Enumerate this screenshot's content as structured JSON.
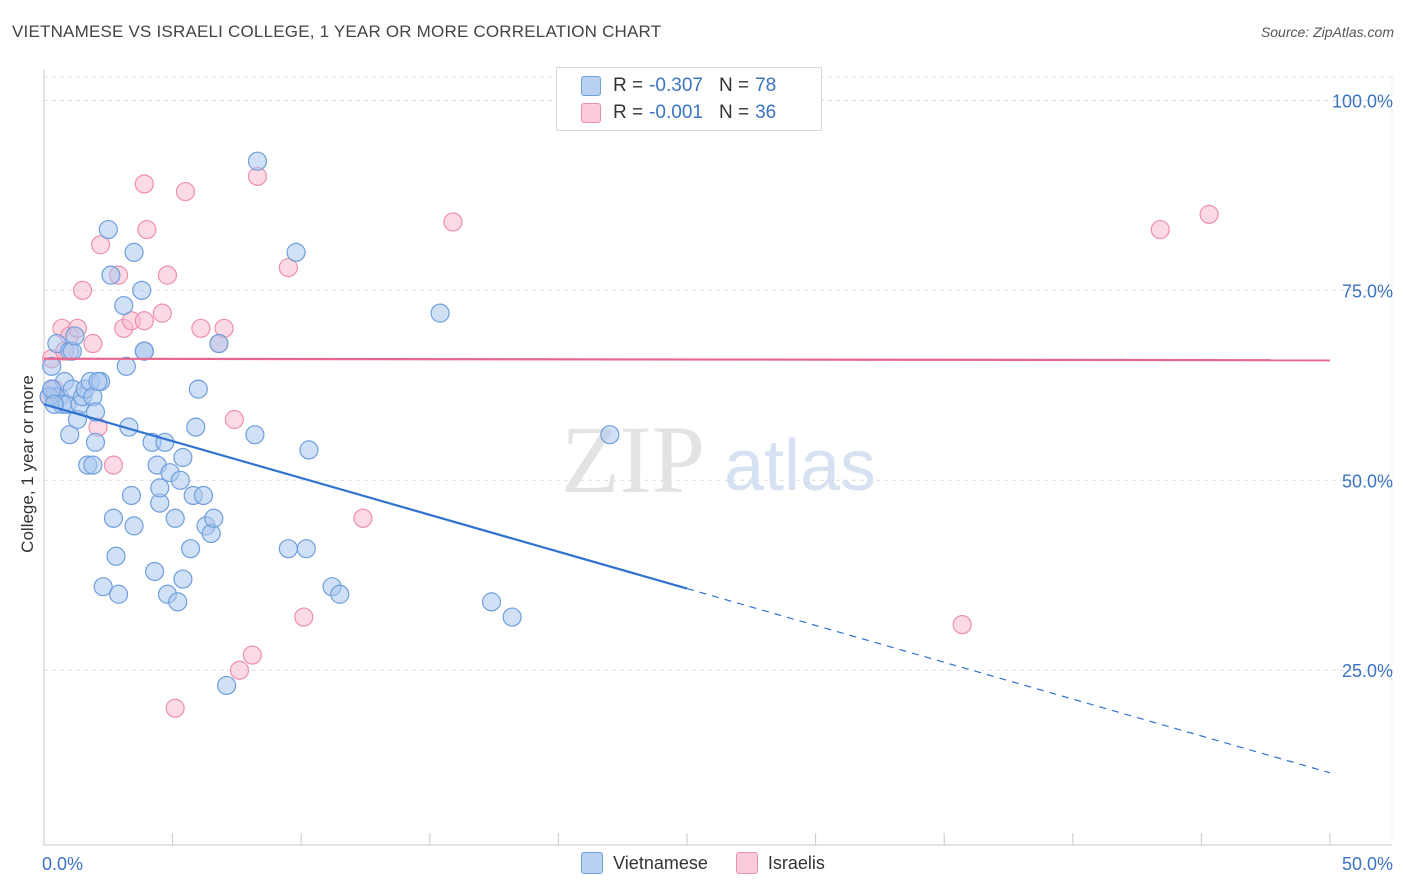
{
  "title": "VIETNAMESE VS ISRAELI COLLEGE, 1 YEAR OR MORE CORRELATION CHART",
  "source": "Source: ZipAtlas.com",
  "watermark": {
    "zip": "ZIP",
    "atlas": "atlas"
  },
  "legend": {
    "rows": [
      {
        "r_label": "R =",
        "r_value": "-0.307",
        "n_label": "N =",
        "n_value": "78"
      },
      {
        "r_label": "R =",
        "r_value": "-0.001",
        "n_label": "N =",
        "n_value": "36"
      }
    ]
  },
  "colors": {
    "blue_fill": "#a9c6ee",
    "blue_stroke": "#6f9fdc",
    "blue_line": "#2f72d1",
    "pink_fill": "#f7bccd",
    "pink_stroke": "#ee8fae",
    "pink_line": "#e8658f",
    "axis_text": "#3b73c4"
  },
  "chart_data": {
    "type": "scatter",
    "title": "VIETNAMESE VS ISRAELI COLLEGE, 1 YEAR OR MORE CORRELATION CHART",
    "xlabel": "",
    "ylabel": "College, 1 year or more",
    "xlim": [
      0,
      50
    ],
    "ylim": [
      2,
      104
    ],
    "x_tick_labels": [
      "0.0%",
      "50.0%"
    ],
    "y_ticks": [
      25,
      50,
      75,
      100
    ],
    "y_tick_labels": [
      "25.0%",
      "50.0%",
      "75.0%",
      "100.0%"
    ],
    "grid": true,
    "series": [
      {
        "name": "Vietnamese",
        "r": -0.307,
        "n": 78,
        "trend": {
          "x0": 0,
          "y0": 60.0,
          "x1": 50,
          "y1": 11.5,
          "solid_until": 25
        },
        "points": [
          [
            0.3,
            65
          ],
          [
            0.3,
            62
          ],
          [
            0.4,
            61
          ],
          [
            0.5,
            68
          ],
          [
            0.6,
            61
          ],
          [
            0.7,
            60
          ],
          [
            0.8,
            63
          ],
          [
            0.9,
            60
          ],
          [
            1.0,
            67
          ],
          [
            1.0,
            56
          ],
          [
            1.1,
            62
          ],
          [
            1.1,
            67
          ],
          [
            1.2,
            69
          ],
          [
            1.3,
            58
          ],
          [
            1.4,
            60
          ],
          [
            1.5,
            61
          ],
          [
            1.6,
            62
          ],
          [
            1.7,
            52
          ],
          [
            1.8,
            63
          ],
          [
            1.9,
            52
          ],
          [
            2.0,
            55
          ],
          [
            2.2,
            63
          ],
          [
            2.3,
            36
          ],
          [
            2.5,
            83
          ],
          [
            2.6,
            77
          ],
          [
            2.7,
            45
          ],
          [
            2.8,
            40
          ],
          [
            2.9,
            35
          ],
          [
            3.1,
            73
          ],
          [
            3.2,
            65
          ],
          [
            3.3,
            57
          ],
          [
            3.4,
            48
          ],
          [
            3.5,
            44
          ],
          [
            3.5,
            80
          ],
          [
            3.8,
            75
          ],
          [
            3.9,
            67
          ],
          [
            3.9,
            67
          ],
          [
            4.2,
            55
          ],
          [
            4.3,
            38
          ],
          [
            4.4,
            52
          ],
          [
            4.5,
            47
          ],
          [
            4.5,
            49
          ],
          [
            4.7,
            55
          ],
          [
            4.8,
            35
          ],
          [
            4.9,
            51
          ],
          [
            5.1,
            45
          ],
          [
            5.2,
            34
          ],
          [
            5.3,
            50
          ],
          [
            5.4,
            53
          ],
          [
            5.4,
            37
          ],
          [
            5.7,
            41
          ],
          [
            5.8,
            48
          ],
          [
            5.9,
            57
          ],
          [
            6.0,
            62
          ],
          [
            6.2,
            48
          ],
          [
            6.3,
            44
          ],
          [
            6.5,
            43
          ],
          [
            6.6,
            45
          ],
          [
            6.8,
            68
          ],
          [
            7.1,
            23
          ],
          [
            8.2,
            56
          ],
          [
            8.3,
            92
          ],
          [
            9.5,
            41
          ],
          [
            9.8,
            80
          ],
          [
            10.2,
            41
          ],
          [
            10.3,
            54
          ],
          [
            11.2,
            36
          ],
          [
            11.5,
            35
          ],
          [
            15.4,
            72
          ],
          [
            17.4,
            34
          ],
          [
            18.2,
            32
          ],
          [
            22.0,
            56
          ],
          [
            0.2,
            61
          ],
          [
            0.3,
            62
          ],
          [
            0.4,
            60
          ],
          [
            1.9,
            61
          ],
          [
            2.0,
            59
          ],
          [
            2.1,
            63
          ]
        ]
      },
      {
        "name": "Israelis",
        "r": -0.001,
        "n": 36,
        "trend": {
          "x0": 0,
          "y0": 66.0,
          "x1": 50,
          "y1": 65.8,
          "solid_until": 50
        },
        "points": [
          [
            0.2,
            61
          ],
          [
            0.3,
            66
          ],
          [
            0.7,
            70
          ],
          [
            0.8,
            67
          ],
          [
            1.0,
            69
          ],
          [
            1.3,
            70
          ],
          [
            1.5,
            75
          ],
          [
            1.9,
            68
          ],
          [
            2.1,
            57
          ],
          [
            2.2,
            81
          ],
          [
            2.7,
            52
          ],
          [
            2.9,
            77
          ],
          [
            3.1,
            70
          ],
          [
            3.4,
            71
          ],
          [
            3.9,
            71
          ],
          [
            3.9,
            89
          ],
          [
            4.0,
            83
          ],
          [
            4.6,
            72
          ],
          [
            4.8,
            77
          ],
          [
            5.1,
            20
          ],
          [
            5.5,
            88
          ],
          [
            6.1,
            70
          ],
          [
            6.8,
            68
          ],
          [
            7.0,
            70
          ],
          [
            7.4,
            58
          ],
          [
            7.6,
            25
          ],
          [
            8.1,
            27
          ],
          [
            8.3,
            90
          ],
          [
            9.5,
            78
          ],
          [
            10.1,
            32
          ],
          [
            12.4,
            45
          ],
          [
            15.9,
            84
          ],
          [
            35.7,
            31
          ],
          [
            43.4,
            83
          ],
          [
            45.3,
            85
          ],
          [
            0.4,
            62
          ]
        ]
      }
    ]
  }
}
